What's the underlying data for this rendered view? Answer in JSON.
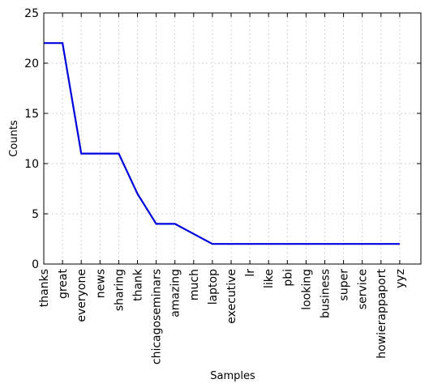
{
  "chart_data": {
    "type": "line",
    "xlabel": "Samples",
    "ylabel": "Counts",
    "ylim": [
      0,
      25
    ],
    "yticks": [
      0,
      5,
      10,
      15,
      20,
      25
    ],
    "grid": true,
    "line_color": "#0000dd",
    "categories": [
      "thanks",
      "great",
      "everyone",
      "news",
      "sharing",
      "thank",
      "chicagoseminars",
      "amazing",
      "much",
      "laptop",
      "executive",
      "lr",
      "like",
      "pbi",
      "looking",
      "business",
      "super",
      "service",
      "howierappaport",
      "yyz"
    ],
    "series": [
      {
        "values": [
          22,
          22,
          11,
          11,
          11,
          7,
          4,
          4,
          3,
          2,
          2,
          2,
          2,
          2,
          2,
          2,
          2,
          2,
          2,
          2
        ]
      }
    ]
  }
}
